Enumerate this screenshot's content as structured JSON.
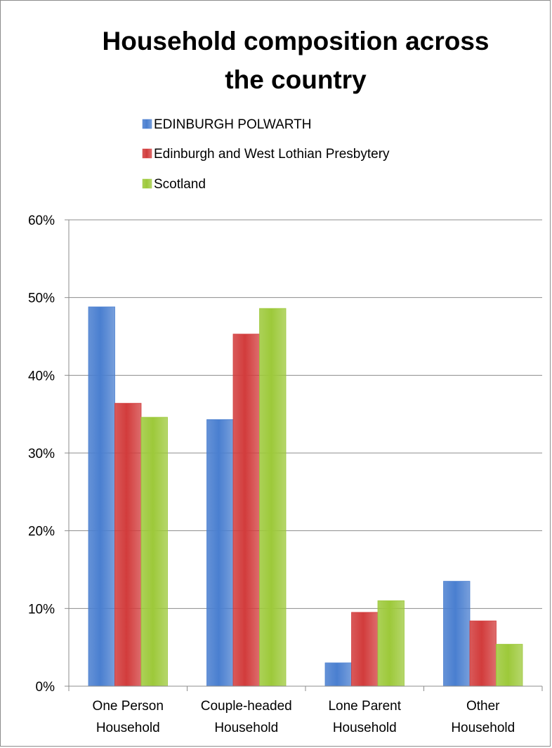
{
  "chart_data": {
    "type": "bar",
    "title_lines": [
      "Household composition across",
      "the country"
    ],
    "categories": [
      [
        "One Person",
        "Household"
      ],
      [
        "Couple-headed",
        "Household"
      ],
      [
        "Lone Parent",
        "Household"
      ],
      [
        "Other",
        "Household"
      ]
    ],
    "series": [
      {
        "name": "EDINBURGH POLWARTH",
        "color": "#4a7fd0",
        "values": [
          48.8,
          34.3,
          3.0,
          13.5
        ]
      },
      {
        "name": "Edinburgh and West Lothian Presbytery",
        "color": "#d23c3c",
        "values": [
          36.4,
          45.3,
          9.5,
          8.4
        ]
      },
      {
        "name": "Scotland",
        "color": "#9dc93a",
        "values": [
          34.6,
          48.6,
          11.0,
          5.4
        ]
      }
    ],
    "ylim": [
      0,
      60
    ],
    "yticks": [
      0,
      10,
      20,
      30,
      40,
      50,
      60
    ],
    "ytick_suffix": "%",
    "grid": true,
    "legend_position": "top"
  }
}
